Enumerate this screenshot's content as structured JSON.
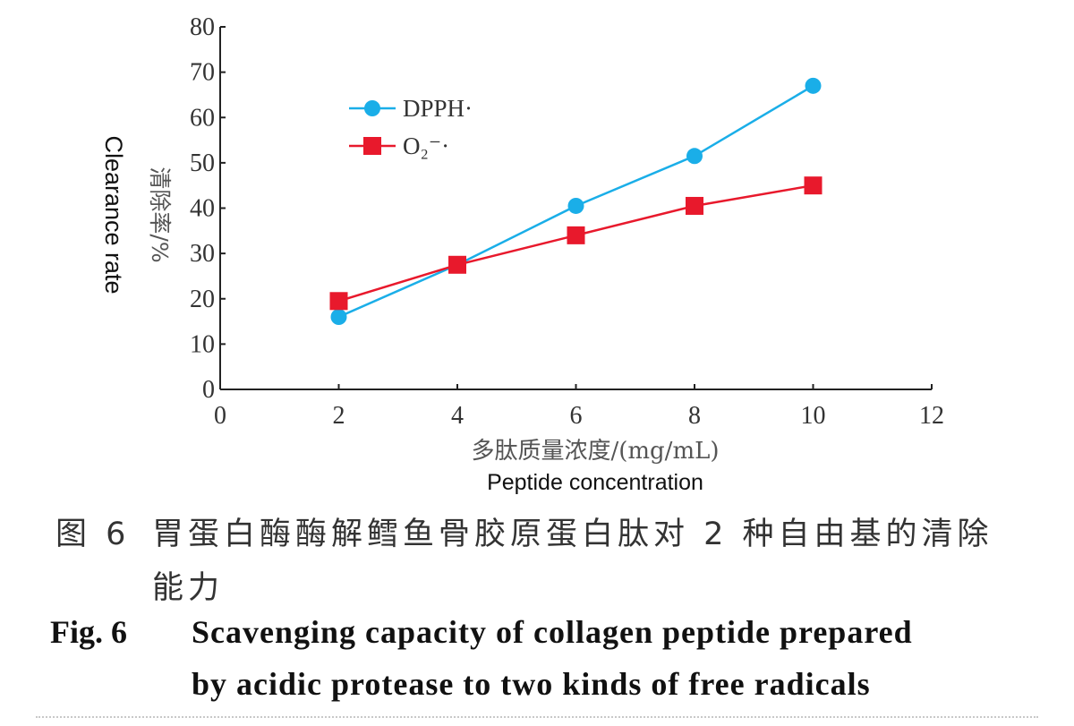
{
  "chart_data": {
    "type": "line",
    "x": [
      2,
      4,
      6,
      8,
      10
    ],
    "series": [
      {
        "name": "DPPH·",
        "values": [
          16,
          27.5,
          40.5,
          51.5,
          67
        ],
        "color": "#1aaee8",
        "marker": "circle"
      },
      {
        "name": "O₂⁻·",
        "values": [
          19.5,
          27.5,
          34,
          40.5,
          45
        ],
        "color": "#e8192c",
        "marker": "square"
      }
    ],
    "xlabel_cn": "多肽质量浓度/(mg/mL)",
    "xlabel_en": "Peptide concentration",
    "ylabel_cn": "清除率/%",
    "ylabel_en": "Clearance rate",
    "xlim": [
      0,
      12
    ],
    "ylim": [
      0,
      80
    ],
    "xticks": [
      "0",
      "2",
      "4",
      "6",
      "8",
      "10",
      "12"
    ],
    "yticks": [
      "0",
      "10",
      "20",
      "30",
      "40",
      "50",
      "60",
      "70",
      "80"
    ],
    "legend_position": "top-left",
    "grid": false
  },
  "caption": {
    "cn_label": "图 6",
    "cn_line1": "胃蛋白酶酶解鳕鱼骨胶原蛋白肽对 2 种自由基的清除",
    "cn_line2": "能力",
    "en_label": "Fig. 6",
    "en_line1": "Scavenging capacity of collagen peptide prepared",
    "en_line2": "by acidic protease to two kinds of free radicals"
  }
}
